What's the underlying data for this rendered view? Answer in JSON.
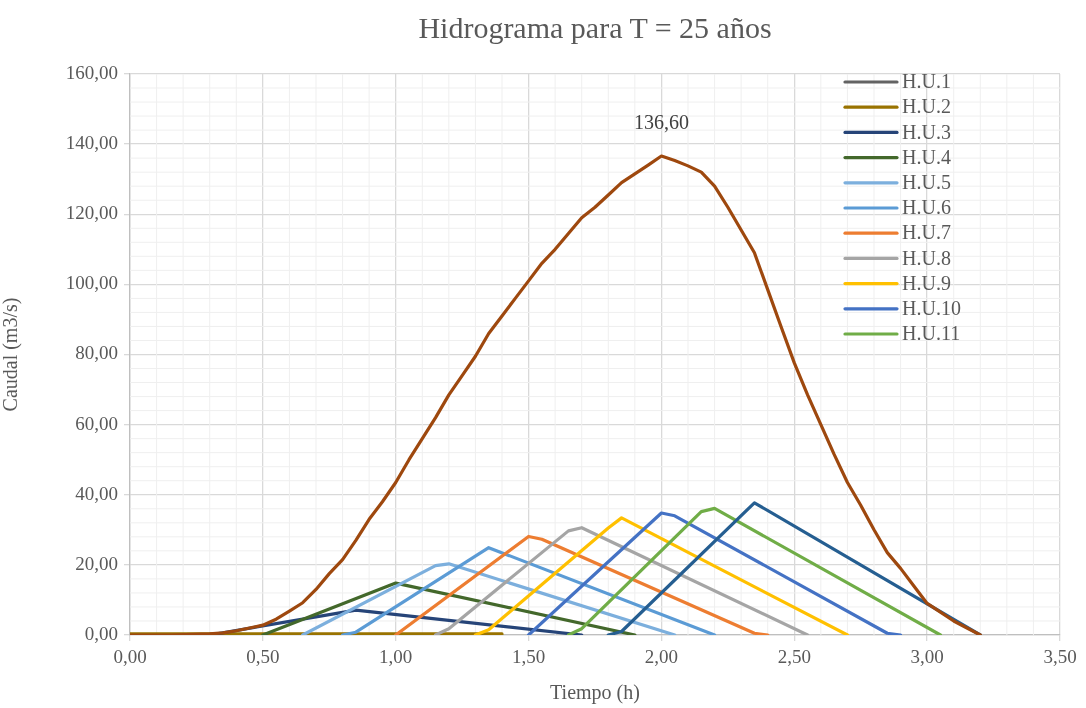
{
  "chart_data": {
    "type": "line",
    "title": "Hidrograma para T = 25 años",
    "xlabel": "Tiempo (h)",
    "ylabel": "Caudal (m3/s)",
    "xlim": [
      0,
      3.5
    ],
    "xticks": [
      {
        "value": 0,
        "label": "0,00"
      },
      {
        "value": 0.5,
        "label": "0,50"
      },
      {
        "value": 1,
        "label": "1,00"
      },
      {
        "value": 1.5,
        "label": "1,50"
      },
      {
        "value": 2,
        "label": "2,00"
      },
      {
        "value": 2.5,
        "label": "2,50"
      },
      {
        "value": 3,
        "label": "3,00"
      },
      {
        "value": 3.5,
        "label": "3,50"
      }
    ],
    "ylim": [
      0,
      160
    ],
    "yticks": [
      {
        "value": 0,
        "label": "0,00"
      },
      {
        "value": 20,
        "label": "20,00"
      },
      {
        "value": 40,
        "label": "40,00"
      },
      {
        "value": 60,
        "label": "60,00"
      },
      {
        "value": 80,
        "label": "80,00"
      },
      {
        "value": 100,
        "label": "100,00"
      },
      {
        "value": 120,
        "label": "120,00"
      },
      {
        "value": 140,
        "label": "140,00"
      },
      {
        "value": 160,
        "label": "160,00"
      }
    ],
    "grid": true,
    "legend": "top right",
    "annotations": [
      {
        "text": "136,60",
        "x": 2.0,
        "y": 136.6
      }
    ],
    "series": [
      {
        "name": "H.U.1",
        "color": "#636363"
      },
      {
        "name": "H.U.2",
        "color": "#997300",
        "x": [
          0,
          1.4
        ],
        "values": [
          0.3,
          0.3
        ]
      },
      {
        "name": "H.U.3",
        "color": "#264478",
        "x": [
          0.3,
          0.85,
          1.7
        ],
        "values": [
          0,
          7.1,
          0
        ]
      },
      {
        "name": "H.U.4",
        "color": "#43682b",
        "x": [
          0.5,
          1.0,
          1.9
        ],
        "values": [
          0,
          14.8,
          0
        ]
      },
      {
        "name": "H.U.5",
        "color": "#7cafdd",
        "x": [
          0.65,
          1.15,
          1.2,
          2.05
        ],
        "values": [
          0,
          19.8,
          20.3,
          0
        ]
      },
      {
        "name": "H.U.6",
        "color": "#5b9bd5",
        "x": [
          0.8,
          0.85,
          1.35,
          2.2
        ],
        "values": [
          0,
          0.8,
          24.9,
          0
        ]
      },
      {
        "name": "H.U.7",
        "color": "#ed7d31",
        "x": [
          1.0,
          1.5,
          1.55,
          2.35,
          2.4
        ],
        "values": [
          0,
          28.1,
          27.3,
          0.5,
          0
        ]
      },
      {
        "name": "H.U.8",
        "color": "#a5a5a5",
        "x": [
          1.15,
          1.2,
          1.65,
          1.7,
          2.55
        ],
        "values": [
          0,
          1.8,
          29.7,
          30.6,
          0
        ]
      },
      {
        "name": "H.U.9",
        "color": "#ffc000",
        "x": [
          1.3,
          1.35,
          1.8,
          1.85,
          2.7
        ],
        "values": [
          0,
          1.5,
          30.5,
          33.4,
          0
        ]
      },
      {
        "name": "H.U.10",
        "color": "#4472c4",
        "x": [
          1.5,
          2.0,
          2.05,
          2.85,
          2.9
        ],
        "values": [
          0,
          34.8,
          34.0,
          0.5,
          0
        ]
      },
      {
        "name": "H.U.11",
        "color": "#70ad47",
        "x": [
          1.65,
          1.7,
          2.15,
          2.2,
          3.05
        ],
        "values": [
          0,
          1.8,
          35.2,
          36.1,
          0
        ]
      },
      {
        "color": "#255e91",
        "x": [
          1.8,
          1.85,
          2.35,
          3.2
        ],
        "values": [
          0,
          1.0,
          37.7,
          0
        ]
      },
      {
        "color": "#9e480e",
        "x": [
          0,
          0.15,
          0.3,
          0.35,
          0.4,
          0.45,
          0.5,
          0.55,
          0.6,
          0.65,
          0.7,
          0.75,
          0.8,
          0.85,
          0.9,
          0.95,
          1.0,
          1.05,
          1.1,
          1.15,
          1.2,
          1.25,
          1.3,
          1.35,
          1.4,
          1.45,
          1.5,
          1.55,
          1.6,
          1.65,
          1.7,
          1.75,
          1.8,
          1.85,
          1.9,
          1.95,
          2.0,
          2.05,
          2.1,
          2.15,
          2.2,
          2.25,
          2.3,
          2.35,
          2.4,
          2.45,
          2.5,
          2.55,
          2.6,
          2.65,
          2.7,
          2.75,
          2.8,
          2.85,
          2.9,
          2.95,
          3.0,
          3.05,
          3.1,
          3.15,
          3.2
        ],
        "values": [
          0,
          0,
          0.3,
          0.6,
          1.2,
          2,
          2.8,
          4.5,
          6.8,
          9.2,
          13,
          17.5,
          21.5,
          27,
          33,
          38,
          43.5,
          50,
          56,
          62,
          68.5,
          74,
          79.5,
          86,
          91,
          96,
          101,
          106,
          110,
          114.5,
          119,
          122,
          125.5,
          129,
          131.5,
          134,
          136.6,
          135.3,
          133.8,
          132,
          128,
          122,
          115.5,
          109,
          98.5,
          88,
          77.6,
          68.5,
          60,
          51.5,
          43.5,
          37,
          30,
          23.5,
          19,
          14,
          9,
          6.5,
          4,
          2,
          0
        ]
      }
    ]
  }
}
